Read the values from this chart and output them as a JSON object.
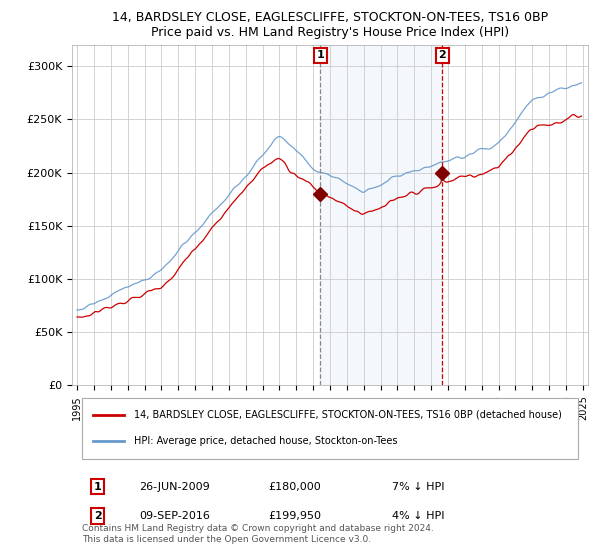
{
  "title": "14, BARDSLEY CLOSE, EAGLESCLIFFE, STOCKTON-ON-TEES, TS16 0BP",
  "subtitle": "Price paid vs. HM Land Registry's House Price Index (HPI)",
  "ylabel_ticks": [
    "£0",
    "£50K",
    "£100K",
    "£150K",
    "£200K",
    "£250K",
    "£300K"
  ],
  "ytick_values": [
    0,
    50000,
    100000,
    150000,
    200000,
    250000,
    300000
  ],
  "ylim": [
    0,
    320000
  ],
  "sale1_date": "26-JUN-2009",
  "sale1_price": 180000,
  "sale1_label": "1",
  "sale1_pct": "7% ↓ HPI",
  "sale2_date": "09-SEP-2016",
  "sale2_price": 199950,
  "sale2_label": "2",
  "sale2_pct": "4% ↓ HPI",
  "legend_property": "14, BARDSLEY CLOSE, EAGLESCLIFFE, STOCKTON-ON-TEES, TS16 0BP (detached house)",
  "legend_hpi": "HPI: Average price, detached house, Stockton-on-Tees",
  "line_property_color": "#cc0000",
  "line_hpi_color": "#6699cc",
  "marker_color": "#800000",
  "shade_color": "#ddeeff",
  "vline1_color": "#888888",
  "vline2_color": "#cc0000",
  "footnote1": "Contains HM Land Registry data © Crown copyright and database right 2024.",
  "footnote2": "This data is licensed under the Open Government Licence v3.0.",
  "start_year": 1995,
  "end_year": 2025,
  "background_color": "#ffffff",
  "grid_color": "#cccccc"
}
